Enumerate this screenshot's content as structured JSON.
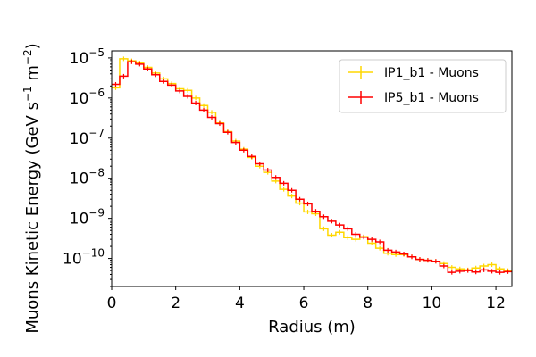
{
  "chart_data": {
    "type": "line",
    "xlabel": "Radius (m)",
    "ylabel": "Muons Kinetic Energy (GeV s$^{-1}$ m$^{-2}$)",
    "ylabel_main": "Muons Kinetic Energy (GeV s",
    "ylabel_exp1": "−1",
    "ylabel_mid": " m",
    "ylabel_exp2": "−2",
    "ylabel_end": ")",
    "xlim": [
      0,
      12.5
    ],
    "ylim": [
      2e-11,
      1.5e-05
    ],
    "yscale": "log",
    "x_ticks": [
      "0",
      "2",
      "4",
      "6",
      "8",
      "10",
      "12"
    ],
    "y_ticks": [
      {
        "base": "10",
        "exp": "−5",
        "value": 1e-05
      },
      {
        "base": "10",
        "exp": "−6",
        "value": 1e-06
      },
      {
        "base": "10",
        "exp": "−7",
        "value": 1e-07
      },
      {
        "base": "10",
        "exp": "−8",
        "value": 1e-08
      },
      {
        "base": "10",
        "exp": "−9",
        "value": 1e-09
      },
      {
        "base": "10",
        "exp": "−10",
        "value": 1e-10
      }
    ],
    "legend_position": "top-right",
    "bin_edges": [
      0,
      0.25,
      0.5,
      0.75,
      1.0,
      1.25,
      1.5,
      1.75,
      2.0,
      2.25,
      2.5,
      2.75,
      3.0,
      3.25,
      3.5,
      3.75,
      4.0,
      4.25,
      4.5,
      4.75,
      5.0,
      5.25,
      5.5,
      5.75,
      6.0,
      6.25,
      6.5,
      6.75,
      7.0,
      7.25,
      7.5,
      7.75,
      8.0,
      8.25,
      8.5,
      8.75,
      9.0,
      9.25,
      9.5,
      9.75,
      10.0,
      10.25,
      10.5,
      10.75,
      11.0,
      11.25,
      11.5,
      11.75,
      12.0,
      12.25,
      12.5
    ],
    "series": [
      {
        "name": "IP1_b1 - Muons",
        "color": "#FFD700",
        "values": [
          1.8e-06,
          9.5e-06,
          8.5e-06,
          7.5e-06,
          5.8e-06,
          4.2e-06,
          3e-06,
          2.3e-06,
          1.7e-06,
          1.55e-06,
          1e-06,
          6.5e-07,
          4.4e-07,
          2.4e-07,
          1.45e-07,
          8.5e-08,
          5.3e-08,
          3.3e-08,
          2e-08,
          1.4e-08,
          8.5e-09,
          5.3e-09,
          3.6e-09,
          2.4e-09,
          1.45e-09,
          1.3e-09,
          5.5e-10,
          3.8e-10,
          4.5e-10,
          3.3e-10,
          3e-10,
          3.5e-10,
          2.4e-10,
          1.8e-10,
          1.35e-10,
          1.25e-10,
          1.25e-10,
          1.1e-10,
          9.5e-11,
          9e-11,
          8.5e-11,
          7.5e-11,
          6e-11,
          5.5e-11,
          5.2e-11,
          5.8e-11,
          6.5e-11,
          7e-11,
          5.5e-11,
          5e-11
        ]
      },
      {
        "name": "IP5_b1 - Muons",
        "color": "#FF0000",
        "values": [
          2.2e-06,
          3.5e-06,
          8e-06,
          7e-06,
          5.3e-06,
          3.8e-06,
          2.6e-06,
          2.1e-06,
          1.5e-06,
          1.1e-06,
          7.5e-07,
          5e-07,
          3.3e-07,
          2.3e-07,
          1.4e-07,
          7.8e-08,
          5e-08,
          3.5e-08,
          2.3e-08,
          1.6e-08,
          1.05e-08,
          7.5e-09,
          5e-09,
          3e-09,
          2.3e-09,
          1.5e-09,
          1.1e-09,
          8.5e-10,
          6.8e-10,
          5.5e-10,
          4e-10,
          3.4e-10,
          3e-10,
          2.6e-10,
          1.6e-10,
          1.45e-10,
          1.3e-10,
          1.1e-10,
          9.5e-11,
          9e-11,
          8.5e-11,
          6.5e-11,
          4.5e-11,
          4.8e-11,
          5e-11,
          4.6e-11,
          5.2e-11,
          4.8e-11,
          4.5e-11,
          4.7e-11
        ]
      }
    ]
  }
}
